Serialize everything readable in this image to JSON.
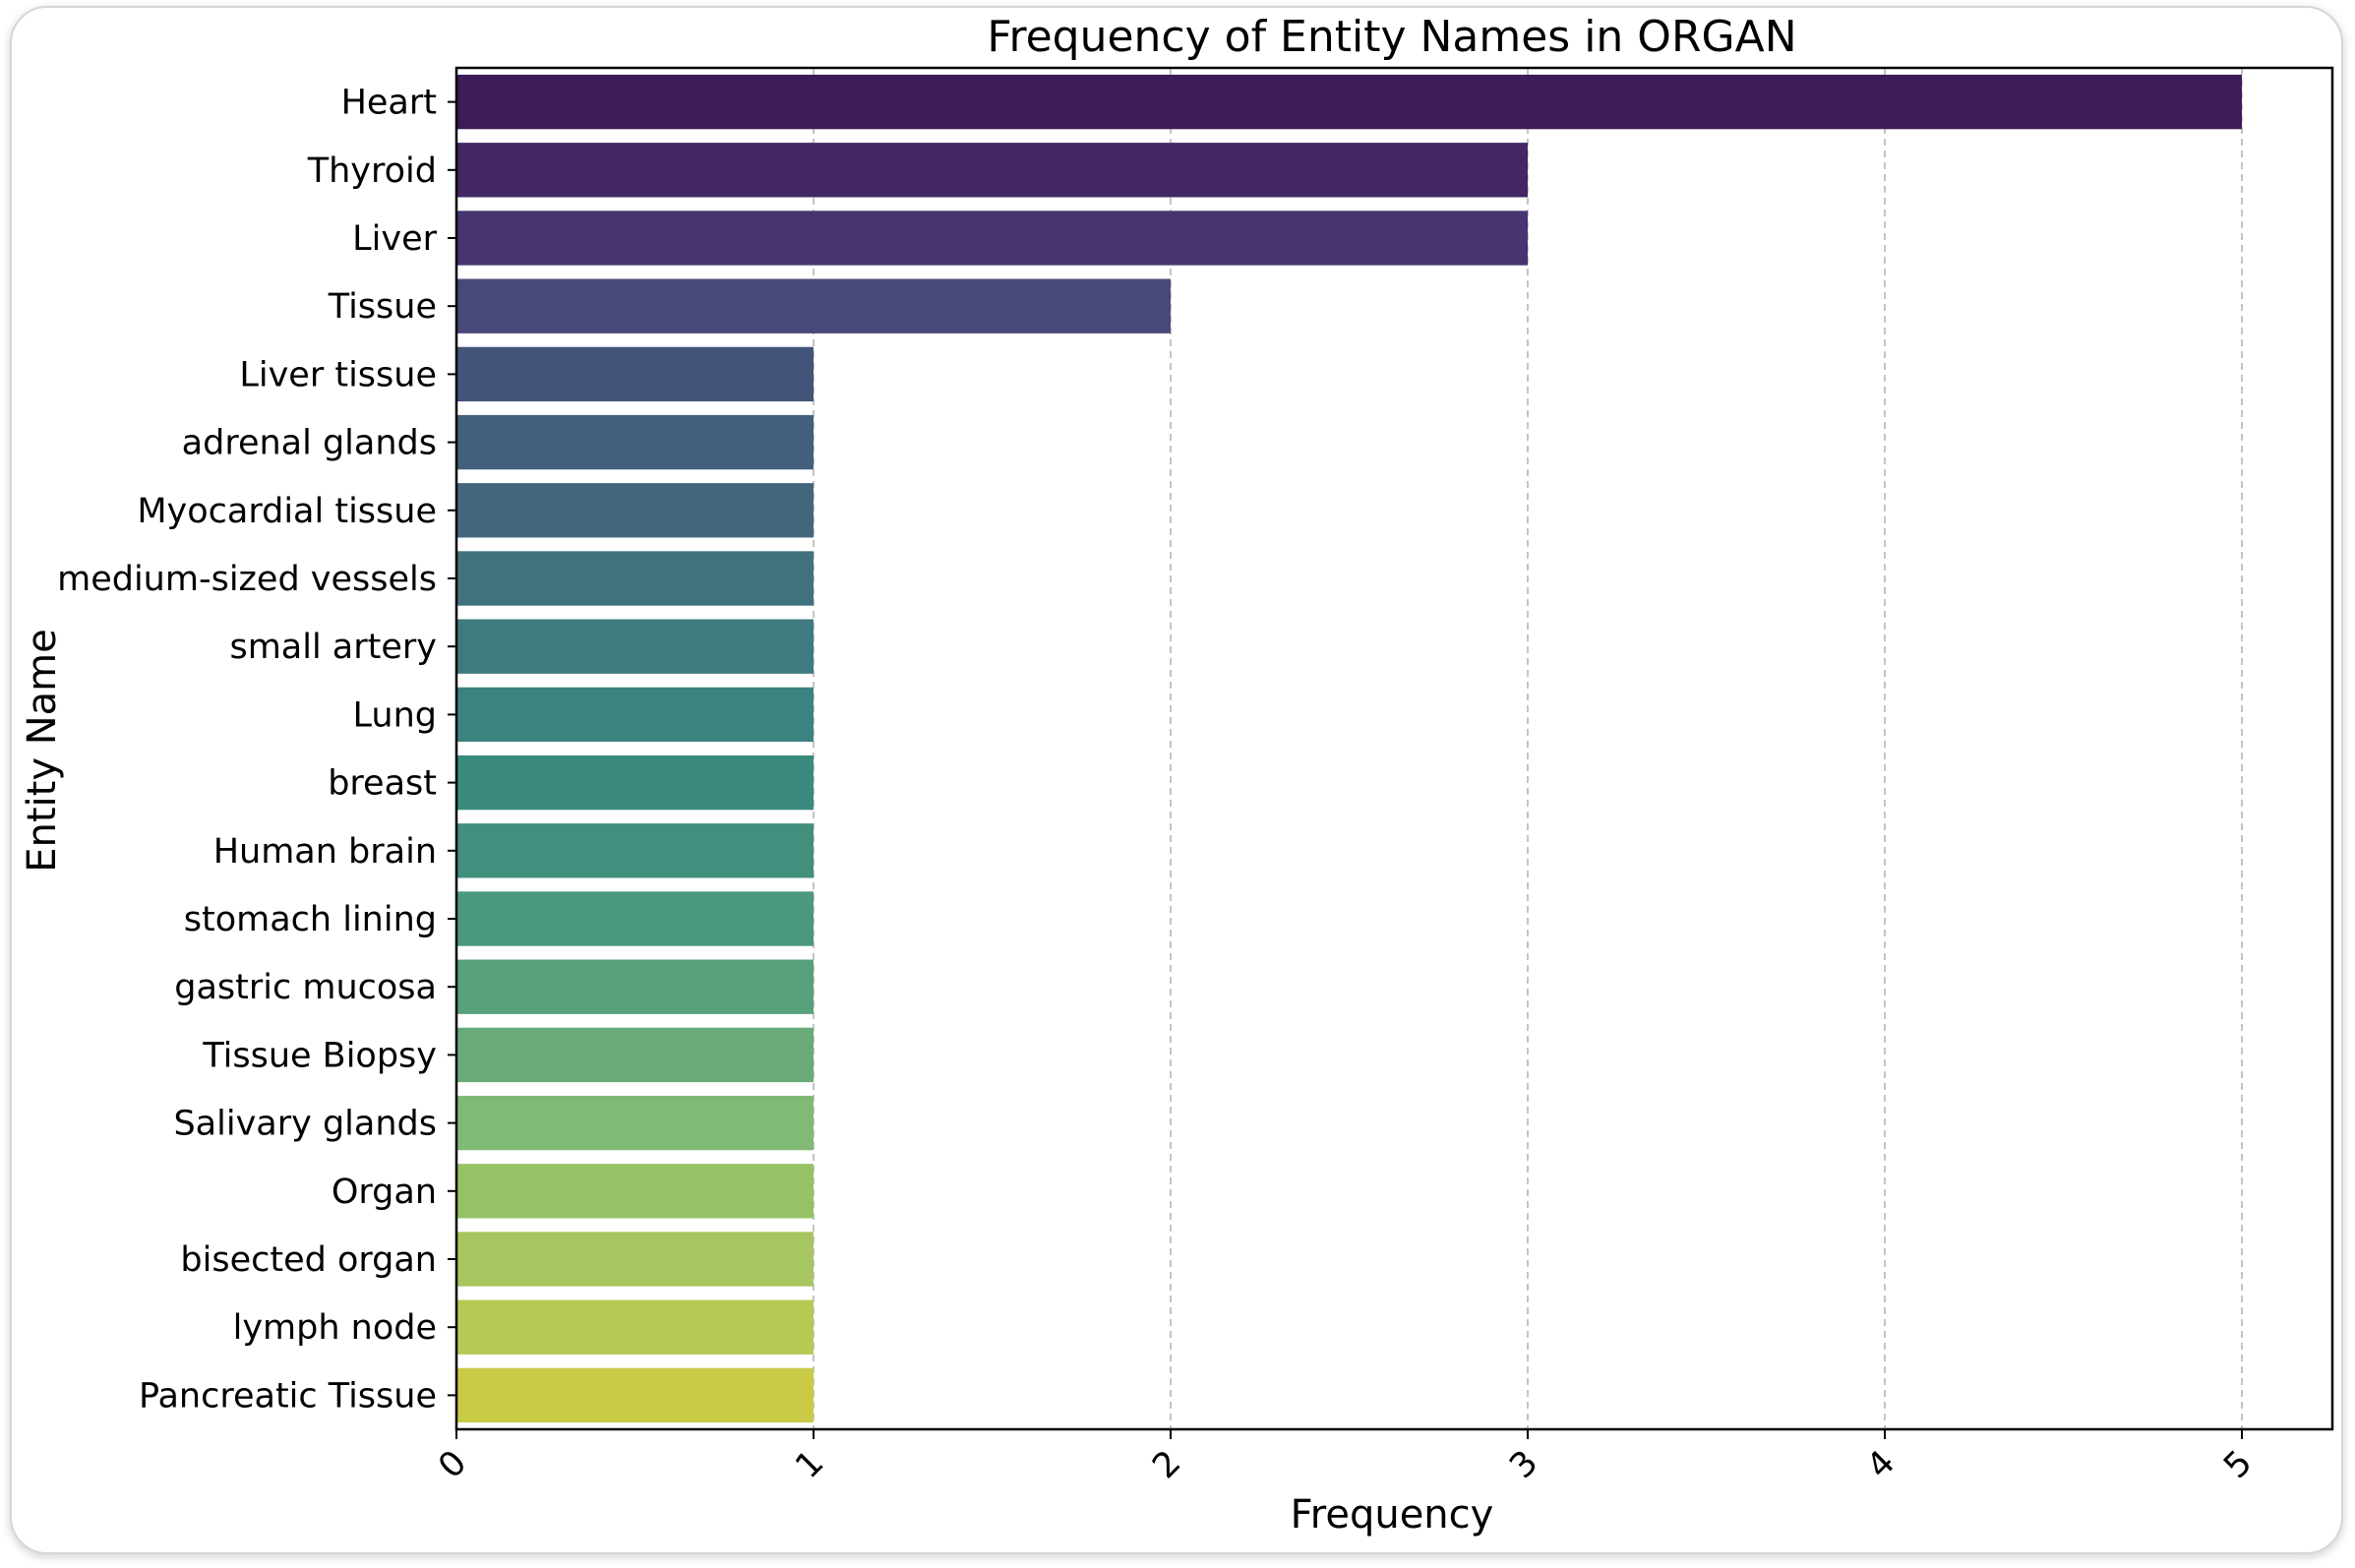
{
  "chart_data": {
    "type": "bar",
    "orientation": "horizontal",
    "title": "Frequency of Entity Names in ORGAN",
    "xlabel": "Frequency",
    "ylabel": "Entity Name",
    "xlim": [
      0,
      5.25
    ],
    "xticks": [
      "0",
      "1",
      "2",
      "3",
      "4",
      "5"
    ],
    "grid": "vertical dashed",
    "categories": [
      "Heart",
      "Thyroid",
      "Liver",
      "Tissue",
      "Liver tissue",
      "adrenal glands",
      "Myocardial tissue",
      "medium-sized vessels",
      "small artery",
      "Lung",
      "breast",
      "Human brain",
      "stomach lining",
      "gastric mucosa",
      "Tissue Biopsy",
      "Salivary glands",
      "Organ",
      "bisected organ",
      "lymph node",
      "Pancreatic Tissue"
    ],
    "values": [
      5,
      3,
      3,
      2,
      1,
      1,
      1,
      1,
      1,
      1,
      1,
      1,
      1,
      1,
      1,
      1,
      1,
      1,
      1,
      1
    ],
    "colors": [
      "#3d1b56",
      "#432864",
      "#463570",
      "#484978",
      "#445479",
      "#435f7c",
      "#42677d",
      "#40727e",
      "#3e7a7f",
      "#3c837f",
      "#3a8b7e",
      "#418f7c",
      "#4a997c",
      "#56a07b",
      "#68ab79",
      "#80ba76",
      "#96c266",
      "#a8c660",
      "#b7c955",
      "#c9cb47"
    ],
    "colormap": "viridis"
  }
}
